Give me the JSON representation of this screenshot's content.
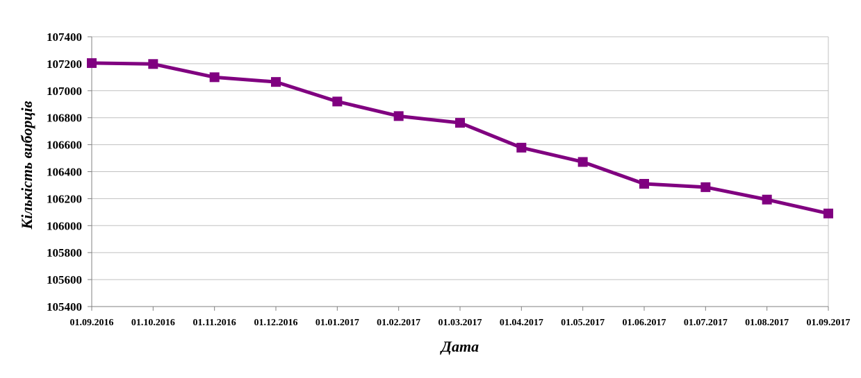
{
  "chart_data": {
    "type": "line",
    "title": "",
    "xlabel": "Дата",
    "ylabel": "Кількість виборців",
    "categories": [
      "01.09.2016",
      "01.10.2016",
      "01.11.2016",
      "01.12.2016",
      "01.01.2017",
      "01.02.2017",
      "01.03.2017",
      "01.04.2017",
      "01.05.2017",
      "01.06.2017",
      "01.07.2017",
      "01.08.2017",
      "01.09.2017"
    ],
    "series": [
      {
        "values": [
          107205,
          107198,
          107100,
          107065,
          106920,
          106812,
          106762,
          106578,
          106472,
          106310,
          106285,
          106193,
          106090
        ]
      }
    ],
    "ylim": [
      105400,
      107400
    ],
    "yticks": [
      "105400",
      "105600",
      "105800",
      "106000",
      "106200",
      "106400",
      "106600",
      "106800",
      "107000",
      "107200",
      "107400"
    ],
    "grid": true,
    "legend": "none",
    "colors": {
      "line": "#800080",
      "marker": "#800080",
      "grid": "#c0c0c0",
      "axis": "#808080"
    }
  }
}
